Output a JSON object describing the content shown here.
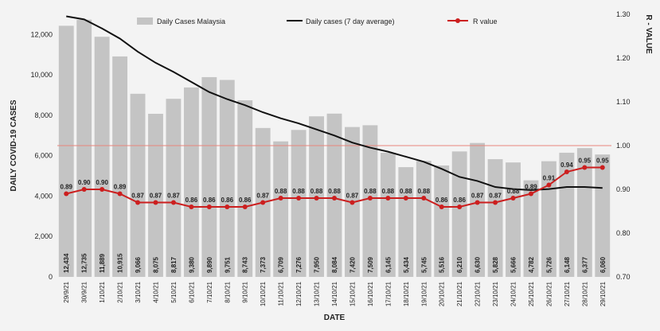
{
  "chart_data": {
    "type": "bar",
    "title": "",
    "xlabel": "DATE",
    "ylabel": "DAILY COVID-19 CASES",
    "y2label": "R - VALUE",
    "legend_position": "top",
    "grid": false,
    "ylim": [
      0,
      13000
    ],
    "y2lim": [
      0.7,
      1.3
    ],
    "yticks": [
      "0",
      "2,000",
      "4,000",
      "6,000",
      "8,000",
      "10,000",
      "12,000"
    ],
    "yticks_values": [
      0,
      2000,
      4000,
      6000,
      8000,
      10000,
      12000
    ],
    "y2ticks": [
      "0.70",
      "0.80",
      "0.90",
      "1.00",
      "1.10",
      "1.20",
      "1.30"
    ],
    "y2ticks_values": [
      0.7,
      0.8,
      0.9,
      1.0,
      1.1,
      1.2,
      1.3
    ],
    "reference_line": {
      "axis": "y2",
      "value": 1.0,
      "color": "#e8867c"
    },
    "categories": [
      "29/9/21",
      "30/9/21",
      "1/10/21",
      "2/10/21",
      "3/10/21",
      "4/10/21",
      "5/10/21",
      "6/10/21",
      "7/10/21",
      "8/10/21",
      "9/10/21",
      "10/10/21",
      "11/10/21",
      "12/10/21",
      "13/10/21",
      "14/10/21",
      "15/10/21",
      "16/10/21",
      "17/10/21",
      "18/10/21",
      "19/10/21",
      "20/10/21",
      "21/10/21",
      "22/10/21",
      "23/10/21",
      "24/10/21",
      "25/10/21",
      "26/10/21",
      "27/10/21",
      "28/10/21",
      "29/10/21"
    ],
    "series": [
      {
        "name": "Daily Cases Malaysia",
        "type": "bar",
        "axis": "y",
        "color": "#c4c4c4",
        "values": [
          12434,
          12735,
          11889,
          10915,
          9066,
          8075,
          8817,
          9380,
          9890,
          9751,
          8743,
          7373,
          6709,
          7276,
          7950,
          8084,
          7420,
          7509,
          6145,
          5434,
          5745,
          5516,
          6210,
          6630,
          5828,
          5666,
          4782,
          5726,
          6148,
          6377,
          6060
        ],
        "labels": [
          "12,434",
          "12,735",
          "11,889",
          "10,915",
          "9,066",
          "8,075",
          "8,817",
          "9,380",
          "9,890",
          "9,751",
          "8,743",
          "7,373",
          "6,709",
          "7,276",
          "7,950",
          "8,084",
          "7,420",
          "7,509",
          "6,145",
          "5,434",
          "5,745",
          "5,516",
          "6,210",
          "6,630",
          "5,828",
          "5,666",
          "4,782",
          "5,726",
          "6,148",
          "6,377",
          "6,060"
        ]
      },
      {
        "name": "Daily cases (7 day average)",
        "type": "line",
        "axis": "y",
        "color": "#111111",
        "values": [
          12900,
          12750,
          12300,
          11800,
          11150,
          10600,
          10150,
          9650,
          9150,
          8800,
          8500,
          8150,
          7850,
          7600,
          7300,
          7000,
          6650,
          6400,
          6200,
          5950,
          5700,
          5350,
          4950,
          4750,
          4450,
          4350,
          4300,
          4350,
          4450,
          4450,
          4400
        ]
      },
      {
        "name": "R value",
        "type": "line",
        "axis": "y2",
        "color": "#cc1f1f",
        "values": [
          0.89,
          0.9,
          0.9,
          0.89,
          0.87,
          0.87,
          0.87,
          0.86,
          0.86,
          0.86,
          0.86,
          0.87,
          0.88,
          0.88,
          0.88,
          0.88,
          0.87,
          0.88,
          0.88,
          0.88,
          0.88,
          0.86,
          0.86,
          0.87,
          0.87,
          0.88,
          0.89,
          0.91,
          0.94,
          0.95,
          0.95
        ],
        "labels": [
          "0.89",
          "0.90",
          "0.90",
          "0.89",
          "0.87",
          "0.87",
          "0.87",
          "0.86",
          "0.86",
          "0.86",
          "0.86",
          "0.87",
          "0.88",
          "0.88",
          "0.88",
          "0.88",
          "0.87",
          "0.88",
          "0.88",
          "0.88",
          "0.88",
          "0.86",
          "0.86",
          "0.87",
          "0.87",
          "0.88",
          "0.89",
          "0.91",
          "0.94",
          "0.95",
          "0.95"
        ]
      }
    ]
  }
}
